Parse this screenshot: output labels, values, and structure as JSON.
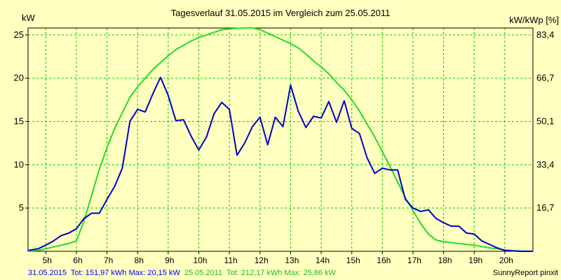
{
  "chart_data": {
    "type": "line",
    "title": "Tagesverlauf 31.05.2015 im Vergleich zum 25.05.2011",
    "ylabel_left": "kW",
    "ylabel_right": "kW/kWp [%]",
    "x_ticks": [
      "5h",
      "6h",
      "7h",
      "8h",
      "9h",
      "10h",
      "11h",
      "12h",
      "13h",
      "14h",
      "15h",
      "16h",
      "17h",
      "18h",
      "19h",
      "20h"
    ],
    "xlim": [
      4.42,
      20.92
    ],
    "ylim": [
      0,
      25.8
    ],
    "y_ticks_left": [
      5,
      10,
      15,
      20,
      25
    ],
    "y_ticks_right": [
      "16,7",
      "33,4",
      "50,1",
      "66,7",
      "83,4"
    ],
    "grid": true,
    "series": [
      {
        "name": "31.05.2015",
        "color": "#0000cc",
        "x": [
          4.42,
          4.75,
          5.0,
          5.25,
          5.5,
          5.75,
          6.0,
          6.25,
          6.5,
          6.75,
          7.0,
          7.25,
          7.5,
          7.75,
          8.0,
          8.25,
          8.5,
          8.75,
          9.0,
          9.25,
          9.5,
          9.75,
          10.0,
          10.25,
          10.5,
          10.75,
          11.0,
          11.25,
          11.5,
          11.75,
          12.0,
          12.25,
          12.5,
          12.75,
          13.0,
          13.25,
          13.5,
          13.75,
          14.0,
          14.25,
          14.5,
          14.75,
          15.0,
          15.25,
          15.5,
          15.75,
          16.0,
          16.25,
          16.5,
          16.75,
          17.0,
          17.25,
          17.5,
          17.75,
          18.0,
          18.25,
          18.5,
          18.75,
          19.0,
          19.25,
          19.5,
          19.75,
          20.0,
          20.25,
          20.5,
          20.92
        ],
        "y": [
          0.1,
          0.3,
          0.7,
          1.2,
          1.8,
          2.1,
          2.6,
          3.8,
          4.4,
          4.4,
          6.0,
          7.5,
          9.6,
          15.0,
          16.4,
          16.1,
          18.2,
          20.1,
          18.0,
          15.1,
          15.2,
          13.3,
          11.7,
          13.2,
          15.9,
          17.2,
          16.4,
          11.1,
          12.5,
          14.4,
          15.5,
          12.3,
          15.5,
          14.4,
          19.2,
          16.2,
          14.3,
          15.6,
          15.4,
          17.3,
          14.9,
          17.4,
          14.2,
          13.6,
          10.8,
          9.0,
          9.6,
          9.4,
          9.4,
          6.0,
          5.0,
          4.6,
          4.8,
          3.8,
          3.3,
          2.9,
          2.9,
          2.1,
          2.0,
          1.2,
          0.8,
          0.4,
          0.1,
          0.05,
          0.0,
          0.0
        ]
      },
      {
        "name": "25.05.2011",
        "color": "#22dd22",
        "x": [
          4.42,
          4.75,
          5.0,
          5.25,
          5.5,
          5.75,
          6.0,
          6.25,
          6.5,
          6.75,
          7.0,
          7.25,
          7.5,
          7.75,
          8.0,
          8.25,
          8.5,
          8.75,
          9.0,
          9.25,
          9.5,
          9.75,
          10.0,
          10.25,
          10.5,
          10.75,
          11.0,
          11.25,
          11.5,
          11.75,
          12.0,
          12.25,
          12.5,
          12.75,
          13.0,
          13.25,
          13.5,
          13.75,
          14.0,
          14.25,
          14.5,
          14.75,
          15.0,
          15.25,
          15.5,
          15.75,
          16.0,
          16.25,
          16.5,
          16.75,
          17.0,
          17.25,
          17.5,
          17.75,
          18.0,
          18.25,
          18.5,
          18.75,
          19.0,
          19.25,
          19.5,
          19.75,
          20.0,
          20.25,
          20.5,
          20.92
        ],
        "y": [
          0.05,
          0.1,
          0.3,
          0.5,
          0.7,
          0.9,
          1.2,
          3.5,
          6.5,
          9.5,
          12.0,
          14.2,
          16.0,
          17.8,
          19.0,
          20.0,
          21.0,
          21.8,
          22.6,
          23.3,
          23.8,
          24.3,
          24.7,
          25.0,
          25.3,
          25.6,
          25.7,
          25.75,
          25.8,
          25.82,
          25.6,
          25.2,
          24.8,
          24.4,
          24.0,
          23.5,
          22.8,
          22.0,
          21.3,
          20.5,
          19.5,
          18.6,
          17.5,
          16.2,
          14.7,
          13.2,
          11.5,
          9.8,
          8.0,
          6.2,
          4.7,
          3.2,
          2.0,
          1.3,
          1.1,
          1.0,
          0.9,
          0.8,
          0.7,
          0.55,
          0.4,
          0.3,
          0.15,
          0.08,
          0.03,
          0.0
        ]
      }
    ]
  },
  "footer": {
    "series1_date": "31.05.2015",
    "series1_stats": "Tot: 151,97 kWh Max: 20,15 kW",
    "series2_date": "25.05.2011",
    "series2_stats": "Tot: 212,17 kWh Max: 25,86 kW",
    "credit": "SunnyReport pinxit"
  }
}
